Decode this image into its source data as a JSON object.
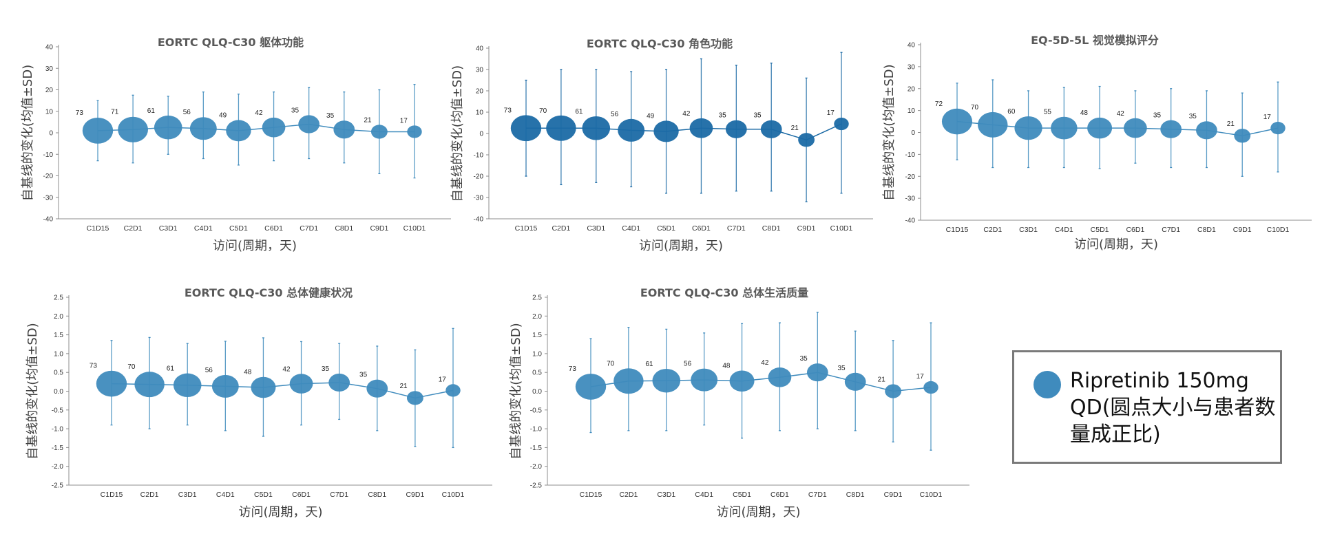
{
  "marker_color": "#3f8bbd",
  "legend": {
    "text": "Ripretinib 150mg QD(圆点大小与患者数量成正比)"
  },
  "chart_data": [
    {
      "type": "scatter",
      "title": "EORTC QLQ-C30 躯体功能",
      "xlabel": "访问(周期，天)",
      "ylabel": "自基线的变化(均值±SD)",
      "ylim": [
        -40,
        40
      ],
      "yticks": [
        -40,
        -30,
        -20,
        -10,
        0,
        10,
        20,
        30,
        40
      ],
      "ytick_labels": [
        "-40",
        "-30",
        "-20",
        "-10",
        "0",
        "10",
        "20",
        "30",
        "40"
      ],
      "categories": [
        "C1D15",
        "C2D1",
        "C3D1",
        "C4D1",
        "C5D1",
        "C6D1",
        "C7D1",
        "C8D1",
        "C9D1",
        "C10D1"
      ],
      "n": [
        73,
        71,
        61,
        56,
        49,
        42,
        35,
        35,
        21,
        17
      ],
      "mean": [
        1,
        1.5,
        2.5,
        2,
        1,
        2.5,
        4,
        1.5,
        0.5,
        0.5
      ],
      "upper": [
        15,
        17.5,
        17,
        19,
        18,
        19,
        21,
        19,
        20,
        22.5
      ],
      "lower": [
        -13,
        -14,
        -10,
        -12,
        -15,
        -13,
        -12,
        -14,
        -19,
        -21
      ],
      "marker_color": "#3f8bbd"
    },
    {
      "type": "scatter",
      "title": "EORTC QLQ-C30 角色功能",
      "xlabel": "访问(周期，天)",
      "ylabel": "自基线的变化(均值±SD)",
      "ylim": [
        -40,
        40
      ],
      "yticks": [
        -40,
        -30,
        -20,
        -10,
        0,
        10,
        20,
        30,
        40
      ],
      "ytick_labels": [
        "-40",
        "-30",
        "-20",
        "-10",
        "0",
        "10",
        "20",
        "30",
        "40"
      ],
      "categories": [
        "C1D15",
        "C2D1",
        "C3D1",
        "C4D1",
        "C5D1",
        "C6D1",
        "C7D1",
        "C8D1",
        "C9D1",
        "C10D1"
      ],
      "n": [
        73,
        70,
        61,
        56,
        49,
        42,
        35,
        35,
        21,
        17
      ],
      "mean": [
        2.5,
        2.5,
        2.5,
        1.5,
        1,
        2.5,
        2,
        2,
        -3,
        4.5
      ],
      "upper": [
        25,
        30,
        30,
        29,
        30,
        35,
        32,
        33,
        26,
        38
      ],
      "lower": [
        -20,
        -24,
        -23,
        -25,
        -28,
        -28,
        -27,
        -27,
        -32,
        -28
      ],
      "marker_color": "#1b6aa5"
    },
    {
      "type": "scatter",
      "title": "EQ-5D-5L 视觉模拟评分",
      "xlabel": "访问(周期，天)",
      "ylabel": "自基线的变化(均值±SD)",
      "ylim": [
        -40,
        40
      ],
      "yticks": [
        -40,
        -30,
        -20,
        -10,
        0,
        10,
        20,
        30,
        40
      ],
      "ytick_labels": [
        "-40",
        "-30",
        "-20",
        "-10",
        "0",
        "10",
        "20",
        "30",
        "40"
      ],
      "categories": [
        "C1D15",
        "C2D1",
        "C3D1",
        "C4D1",
        "C5D1",
        "C6D1",
        "C7D1",
        "C8D1",
        "C9D1",
        "C10D1"
      ],
      "n": [
        72,
        70,
        60,
        55,
        48,
        42,
        35,
        35,
        21,
        17
      ],
      "mean": [
        5,
        3.5,
        2,
        2,
        2,
        2,
        1.5,
        1,
        -1.5,
        2
      ],
      "upper": [
        22.5,
        24,
        19,
        20.5,
        21,
        19,
        20,
        19,
        18,
        23
      ],
      "lower": [
        -12.5,
        -16,
        -16,
        -16,
        -16.5,
        -14,
        -16,
        -16,
        -20,
        -18
      ],
      "marker_color": "#3f8bbd"
    },
    {
      "type": "scatter",
      "title": "EORTC QLQ-C30 总体健康状况",
      "xlabel": "访问(周期，天)",
      "ylabel": "自基线的变化(均值±SD)",
      "ylim": [
        -2.5,
        2.5
      ],
      "yticks": [
        -2.5,
        -2,
        -1.5,
        -1,
        -0.5,
        0,
        0.5,
        1,
        1.5,
        2,
        2.5
      ],
      "ytick_labels": [
        "-2.5",
        "-2.0",
        "-1.5",
        "-1.0",
        "-0.5",
        "0.0",
        "0.5",
        "1.0",
        "1.5",
        "2.0",
        "2.5"
      ],
      "categories": [
        "C1D15",
        "C2D1",
        "C3D1",
        "C4D1",
        "C5D1",
        "C6D1",
        "C7D1",
        "C8D1",
        "C9D1",
        "C10D1"
      ],
      "n": [
        73,
        70,
        61,
        56,
        48,
        42,
        35,
        35,
        21,
        17
      ],
      "mean": [
        0.2,
        0.18,
        0.16,
        0.13,
        0.1,
        0.2,
        0.23,
        0.07,
        -0.18,
        0.02
      ],
      "upper": [
        1.35,
        1.43,
        1.27,
        1.33,
        1.42,
        1.32,
        1.27,
        1.2,
        1.1,
        1.67
      ],
      "lower": [
        -0.9,
        -1.0,
        -0.9,
        -1.05,
        -1.2,
        -0.9,
        -0.75,
        -1.05,
        -1.47,
        -1.5
      ],
      "marker_color": "#3f8bbd"
    },
    {
      "type": "scatter",
      "title": "EORTC QLQ-C30 总体生活质量",
      "xlabel": "访问(周期，天)",
      "ylabel": "自基线的变化(均值±SD)",
      "ylim": [
        -2.5,
        2.5
      ],
      "yticks": [
        -2.5,
        -2,
        -1.5,
        -1,
        -0.5,
        0,
        0.5,
        1,
        1.5,
        2,
        2.5
      ],
      "ytick_labels": [
        "-2.5",
        "-2.0",
        "-1.5",
        "-1.0",
        "-0.5",
        "0.0",
        "0.5",
        "1.0",
        "1.5",
        "2.0",
        "2.5"
      ],
      "categories": [
        "C1D15",
        "C2D1",
        "C3D1",
        "C4D1",
        "C5D1",
        "C6D1",
        "C7D1",
        "C8D1",
        "C9D1",
        "C10D1"
      ],
      "n": [
        73,
        70,
        61,
        56,
        48,
        42,
        35,
        35,
        21,
        17
      ],
      "mean": [
        0.12,
        0.27,
        0.28,
        0.3,
        0.27,
        0.37,
        0.5,
        0.25,
        0.0,
        0.1
      ],
      "upper": [
        1.4,
        1.7,
        1.65,
        1.55,
        1.8,
        1.82,
        2.1,
        1.6,
        1.35,
        1.82
      ],
      "lower": [
        -1.1,
        -1.05,
        -1.05,
        -0.9,
        -1.25,
        -1.05,
        -1.0,
        -1.05,
        -1.35,
        -1.57
      ],
      "marker_color": "#3f8bbd"
    }
  ]
}
